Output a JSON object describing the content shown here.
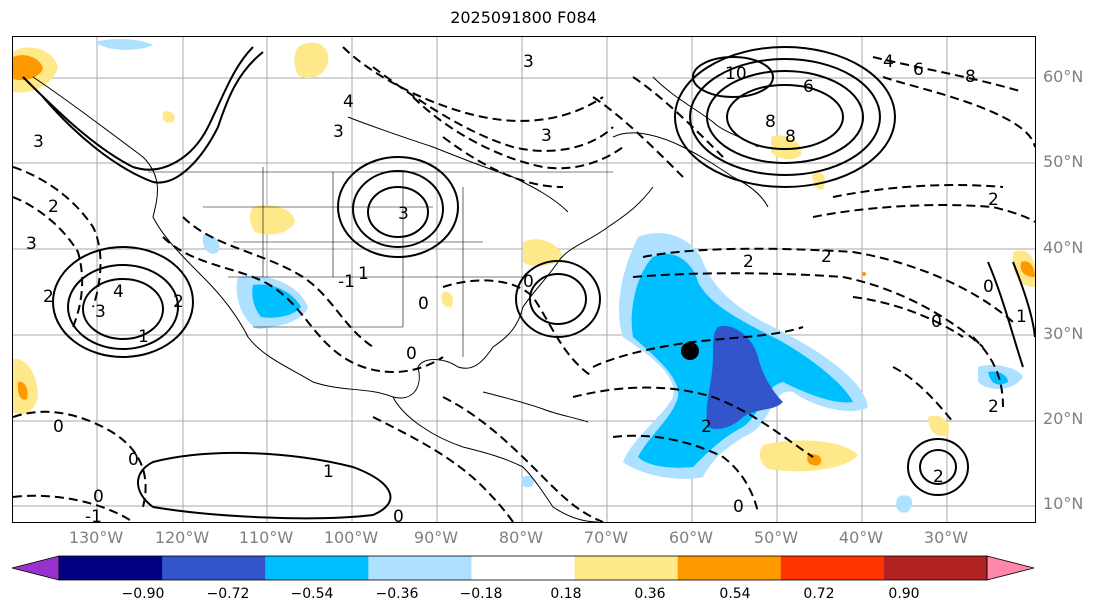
{
  "title": "2025091800 F084",
  "lat_labels": [
    "60°N",
    "50°N",
    "40°N",
    "30°N",
    "20°N",
    "10°N"
  ],
  "lon_labels": [
    "130°W",
    "120°W",
    "110°W",
    "100°W",
    "90°W",
    "80°W",
    "70°W",
    "60°W",
    "50°W",
    "40°W",
    "30°W"
  ],
  "colorbar": {
    "ticks": [
      "−0.90",
      "−0.72",
      "−0.54",
      "−0.36",
      "−0.18",
      "0.18",
      "0.36",
      "0.54",
      "0.72",
      "0.90"
    ],
    "colors": [
      "#9932cc",
      "#000080",
      "#3355cc",
      "#00bfff",
      "#aee0ff",
      "#ffffff",
      "#ffe88a",
      "#ff9900",
      "#ff3300",
      "#b22222",
      "#ff88aa"
    ]
  },
  "contour_labels": [
    "10",
    "8",
    "8",
    "6",
    "6",
    "8",
    "2",
    "2",
    "3",
    "3",
    "2",
    "1",
    "0",
    "0",
    "0",
    "0",
    "-1",
    "0",
    "0",
    "1",
    "2",
    "2",
    "3",
    "2",
    "0",
    "0",
    "3",
    "2",
    "0",
    "1",
    "-1",
    "4",
    "3",
    "2",
    "1",
    "0",
    "2",
    "4",
    "4",
    "3",
    "3"
  ],
  "marker": {
    "name": "storm-center",
    "lat": 28,
    "lon": -60
  }
}
